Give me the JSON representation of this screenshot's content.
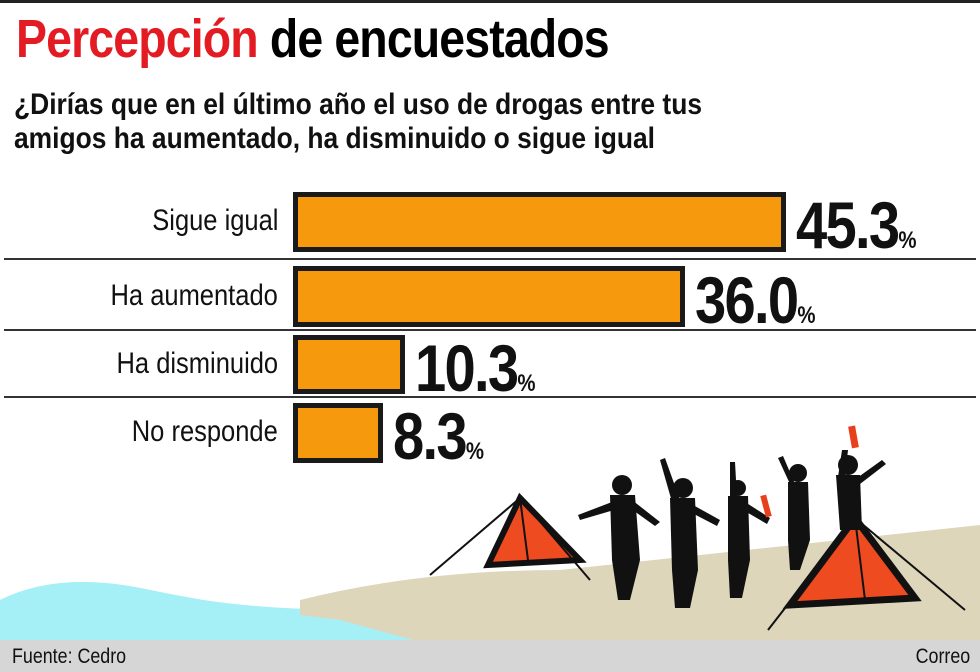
{
  "title": {
    "highlight": "Percepción",
    "rest": "de encuestados",
    "highlight_color": "#e31b23"
  },
  "subtitle_line1": "¿Dirías que en el último año el uso de drogas entre tus",
  "subtitle_line2": "amigos ha aumentado, ha disminuido o sigue igual",
  "chart_data": {
    "type": "bar",
    "orientation": "horizontal",
    "categories": [
      "Sigue igual",
      "Ha aumentado",
      "Ha disminuido",
      "No responde"
    ],
    "values": [
      45.3,
      36.0,
      10.3,
      8.3
    ],
    "value_labels": [
      "45.3",
      "36.0",
      "10.3",
      "8.3"
    ],
    "unit": "%",
    "bar_color": "#f7990c",
    "border_color": "#1a1a1a",
    "xlim": [
      0,
      45.3
    ],
    "grid": false
  },
  "footer": {
    "source": "Fuente: Cedro",
    "credit": "Correo"
  }
}
